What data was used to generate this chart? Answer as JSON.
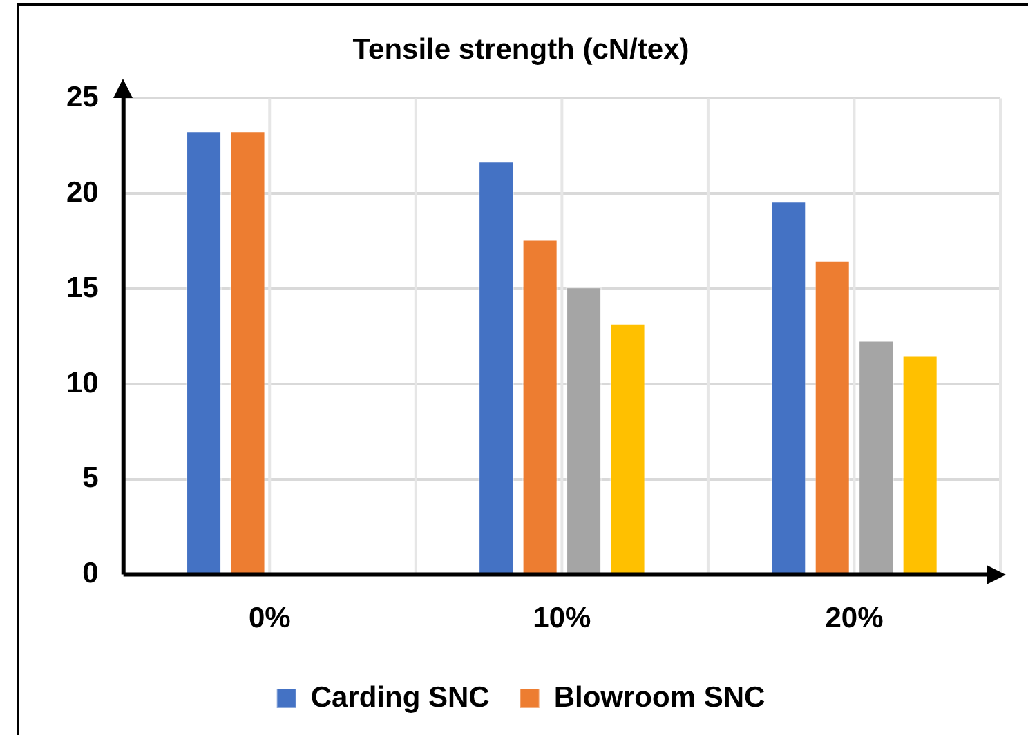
{
  "chart_data": {
    "type": "bar",
    "title": "Tensile strength (cN/tex)",
    "categories": [
      "0%",
      "10%",
      "20%"
    ],
    "series": [
      {
        "name": "Carding SNC",
        "color": "#4472c4",
        "values": [
          23.3,
          21.7,
          19.6
        ]
      },
      {
        "name": "Blowroom SNC",
        "color": "#ed7d31",
        "values": [
          23.3,
          17.6,
          16.5
        ]
      },
      {
        "color": "#a5a5a5",
        "values": [
          null,
          15.1,
          12.3
        ]
      },
      {
        "color": "#ffc000",
        "values": [
          null,
          13.2,
          11.5
        ]
      }
    ],
    "ylim": [
      0,
      25
    ],
    "yticks": [
      0,
      5,
      10,
      15,
      20,
      25
    ],
    "grid": true,
    "legend": "bottom"
  }
}
